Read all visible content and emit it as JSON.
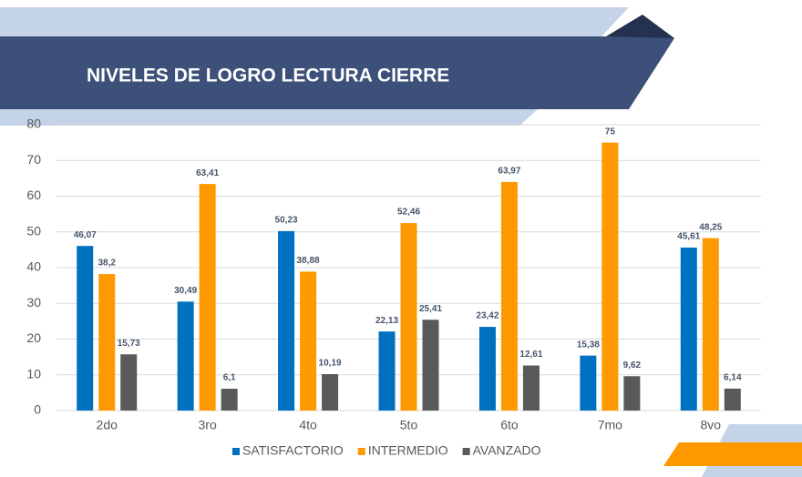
{
  "chart_data": {
    "type": "bar",
    "title": "NIVELES DE LOGRO LECTURA CIERRE",
    "categories": [
      "2do",
      "3ro",
      "4to",
      "5to",
      "6to",
      "7mo",
      "8vo"
    ],
    "series": [
      {
        "name": "SATISFACTORIO",
        "color": "#0070c0",
        "values": [
          46.07,
          30.49,
          50.23,
          22.13,
          23.42,
          15.38,
          45.61
        ],
        "value_labels": [
          "46,07",
          "30,49",
          "50,23",
          "22,13",
          "23,42",
          "15,38",
          "45,61"
        ]
      },
      {
        "name": "INTERMEDIO",
        "color": "#ff9900",
        "values": [
          38.2,
          63.41,
          38.88,
          52.46,
          63.97,
          75,
          48.25
        ],
        "value_labels": [
          "38,2",
          "63,41",
          "38,88",
          "52,46",
          "63,97",
          "75",
          "48,25"
        ]
      },
      {
        "name": "AVANZADO",
        "color": "#595959",
        "values": [
          15.73,
          6.1,
          10.19,
          25.41,
          12.61,
          9.62,
          6.14
        ],
        "value_labels": [
          "15,73",
          "6,1",
          "10,19",
          "25,41",
          "12,61",
          "9,62",
          "6,14"
        ]
      }
    ],
    "ylim": [
      0,
      80
    ],
    "yticks": [
      0,
      10,
      20,
      30,
      40,
      50,
      60,
      70,
      80
    ],
    "grid": true,
    "legend": "bottom"
  }
}
